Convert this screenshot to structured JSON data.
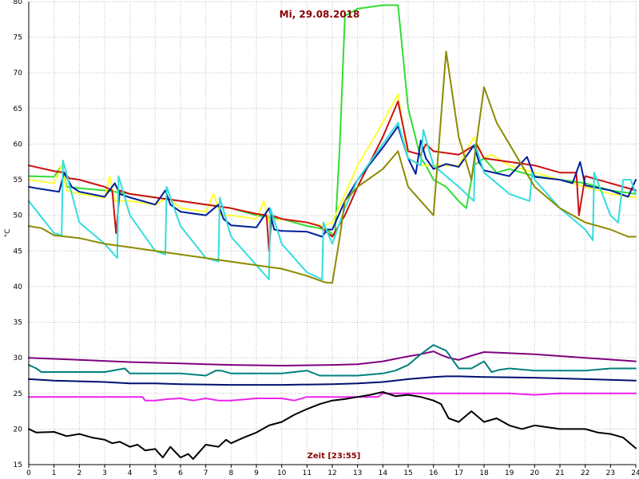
{
  "chart_data": {
    "type": "line",
    "title": "Mi, 29.08.2018",
    "xlabel": "Zeit [23:55]",
    "ylabel": "°C",
    "xlim": [
      0,
      24
    ],
    "ylim": [
      15,
      80
    ],
    "x_ticks": [
      "0",
      "1",
      "2",
      "3",
      "4",
      "5",
      "6",
      "7",
      "8",
      "9",
      "10",
      "11",
      "12",
      "13",
      "14",
      "15",
      "16",
      "17",
      "18",
      "19",
      "20",
      "21",
      "22",
      "23",
      "24"
    ],
    "y_ticks": [
      "15",
      "20",
      "25",
      "30",
      "35",
      "40",
      "45",
      "50",
      "55",
      "60",
      "65",
      "70",
      "75",
      "80"
    ],
    "grid": true,
    "legend": "none",
    "series": [
      {
        "color": "#33dd33",
        "x": [
          0,
          1,
          1.3,
          1.5,
          2,
          3,
          4,
          5,
          6,
          7,
          8,
          9,
          10,
          11,
          11.8,
          12.1,
          12.3,
          12.5,
          13,
          14,
          14.6,
          15,
          15.5,
          15.7,
          16,
          16.5,
          17,
          17.3,
          17.6,
          18,
          18.5,
          19,
          19.5,
          20,
          21,
          22,
          23,
          24
        ],
        "y": [
          55.5,
          55.4,
          57,
          54,
          53.8,
          53.5,
          53,
          52.5,
          52,
          51.5,
          51,
          50,
          49.5,
          48.5,
          48,
          47,
          60,
          78,
          79,
          79.5,
          79.5,
          65,
          58,
          57,
          55,
          54,
          52,
          51,
          57,
          58,
          56,
          56.5,
          56,
          55.5,
          55,
          54.5,
          53.5,
          53
        ]
      },
      {
        "color": "#ffff33",
        "x": [
          0,
          1,
          1.3,
          1.5,
          2,
          3,
          3.2,
          3.4,
          4,
          5,
          5.5,
          6,
          7,
          7.3,
          7.6,
          8,
          9,
          9.3,
          9.5,
          10,
          11,
          11.6,
          12,
          12.5,
          13,
          14,
          14.6,
          15,
          15.5,
          16,
          17,
          17.6,
          18,
          18.3,
          19,
          20,
          21,
          22,
          23,
          24
        ],
        "y": [
          55,
          54.5,
          57,
          53.5,
          53,
          52.5,
          55.5,
          52,
          52,
          51.5,
          52.5,
          51,
          50.5,
          53,
          50,
          50,
          49.5,
          52,
          49,
          49.5,
          49,
          48.5,
          49,
          53,
          57,
          63,
          67,
          58,
          57,
          57,
          57,
          61,
          58,
          58.5,
          57,
          56,
          55,
          54,
          53,
          52.5
        ]
      },
      {
        "color": "#cc1111",
        "x": [
          0,
          1,
          1.4,
          1.6,
          2,
          3,
          3.3,
          3.45,
          3.6,
          4,
          5,
          6,
          7,
          8,
          9,
          9.4,
          9.5,
          9.6,
          10,
          11,
          11.5,
          12,
          12.5,
          13,
          14,
          14.6,
          15,
          15.5,
          15.7,
          16,
          17,
          17.7,
          18,
          19,
          20,
          21,
          21.65,
          21.75,
          22,
          23,
          24
        ],
        "y": [
          57,
          56.2,
          56,
          55.2,
          55,
          54,
          53.5,
          47.5,
          53.5,
          53,
          52.5,
          52,
          51.5,
          51,
          50.2,
          50,
          45,
          50,
          49.5,
          49,
          48.5,
          47,
          50,
          54,
          61,
          66,
          59,
          58.5,
          60,
          59,
          58.5,
          60,
          58,
          57.5,
          57,
          56,
          56,
          50,
          55.5,
          54.5,
          53.5
        ]
      },
      {
        "color": "#001f9c",
        "x": [
          0,
          0.3,
          1.2,
          1.4,
          1.7,
          2,
          3,
          3.4,
          3.6,
          4,
          5,
          5.4,
          5.6,
          6,
          7,
          7.5,
          7.7,
          8,
          9,
          9.5,
          9.7,
          10,
          11,
          11.6,
          11.8,
          12,
          12.5,
          13,
          14,
          14.6,
          15,
          15.3,
          15.5,
          15.7,
          16,
          16.5,
          17,
          17.6,
          17.8,
          18,
          19,
          19.7,
          20,
          21,
          21.5,
          21.8,
          22,
          23,
          23.7,
          24
        ],
        "y": [
          54,
          53.8,
          53.3,
          56,
          54,
          53.3,
          52.6,
          54.5,
          53,
          52.5,
          51.5,
          53.5,
          51.5,
          50.5,
          50,
          51.5,
          49.5,
          48.6,
          48.3,
          51,
          48,
          47.8,
          47.7,
          47,
          48,
          48,
          52,
          55,
          59.5,
          62.5,
          58,
          55.8,
          60.5,
          58,
          56.5,
          57.2,
          56.8,
          59.8,
          57.5,
          56.3,
          55.5,
          58.2,
          55.4,
          55,
          54.5,
          57.5,
          54.2,
          53.5,
          52.6,
          55
        ]
      },
      {
        "color": "#33dddd",
        "x": [
          0,
          1,
          1.3,
          1.35,
          2,
          3,
          3.5,
          3.55,
          4,
          5,
          5.4,
          5.45,
          6,
          7,
          7.5,
          7.55,
          8,
          9,
          9.5,
          9.55,
          10,
          11,
          11.6,
          11.65,
          12,
          12.5,
          13,
          14,
          14.6,
          15,
          15.5,
          15.6,
          16,
          17,
          17.6,
          17.65,
          18,
          19,
          19.8,
          19.9,
          20,
          21,
          22,
          22.3,
          22.35,
          23,
          23.3,
          23.5,
          23.8,
          24
        ],
        "y": [
          52,
          47.5,
          47.2,
          57.7,
          49,
          46,
          44,
          55.5,
          50,
          45,
          44.5,
          54,
          48.5,
          44,
          43.5,
          52.5,
          47,
          43,
          41,
          51,
          46,
          42,
          41,
          49,
          46,
          51,
          55,
          60,
          63,
          58,
          57,
          62,
          57,
          54,
          52,
          60,
          56,
          53,
          52,
          56,
          55,
          51,
          48,
          46.5,
          56,
          50,
          49,
          55,
          55,
          53
        ]
      },
      {
        "color": "#8b8b00",
        "x": [
          0,
          0.5,
          1,
          2,
          3,
          4,
          5,
          6,
          7,
          8,
          9,
          10,
          11,
          11.7,
          12,
          12.3,
          12.5,
          13,
          14,
          14.6,
          15,
          15.5,
          16,
          16.5,
          17,
          17.5,
          18,
          18.5,
          19,
          19.5,
          20,
          21,
          22,
          23,
          23.7,
          24
        ],
        "y": [
          48.5,
          48.2,
          47.2,
          46.8,
          46,
          45.5,
          45,
          44.5,
          44,
          43.5,
          43,
          42.5,
          41.5,
          40.6,
          40.5,
          47,
          52,
          54,
          56.5,
          59,
          54,
          52,
          50,
          73,
          61,
          55,
          68,
          63,
          60,
          57,
          54,
          51,
          49,
          48,
          47,
          47
        ]
      },
      {
        "color": "#800080",
        "x": [
          0,
          2,
          4,
          6,
          8,
          10,
          12,
          13,
          14,
          15,
          15.5,
          16,
          16.3,
          16.6,
          17,
          17.5,
          18,
          20,
          22,
          24
        ],
        "y": [
          30,
          29.7,
          29.4,
          29.2,
          29,
          28.9,
          29,
          29.1,
          29.5,
          30.2,
          30.5,
          30.9,
          30.4,
          30,
          29.7,
          30.3,
          30.8,
          30.5,
          30,
          29.5
        ]
      },
      {
        "color": "#008080",
        "x": [
          0,
          0.3,
          0.5,
          2,
          3,
          3.8,
          4,
          5,
          6,
          7,
          7.4,
          7.6,
          8,
          9,
          10,
          11,
          11.5,
          12,
          13,
          14,
          14.5,
          15,
          15.5,
          16,
          16.5,
          17,
          17.5,
          18,
          18.3,
          18.6,
          19,
          20,
          21,
          22,
          23,
          24
        ],
        "y": [
          29,
          28.5,
          28,
          28,
          28,
          28.5,
          27.8,
          27.8,
          27.8,
          27.5,
          28.2,
          28.2,
          27.8,
          27.8,
          27.8,
          28.2,
          27.5,
          27.5,
          27.5,
          27.8,
          28.2,
          29,
          30.5,
          31.8,
          31,
          28.5,
          28.5,
          29.5,
          28,
          28.3,
          28.5,
          28.2,
          28.2,
          28.2,
          28.5,
          28.5
        ]
      },
      {
        "color": "#001070",
        "x": [
          0,
          1,
          2,
          3,
          4,
          5,
          6,
          8,
          10,
          12,
          13,
          14,
          15,
          16,
          16.5,
          17,
          18,
          20,
          22,
          24
        ],
        "y": [
          27,
          26.8,
          26.7,
          26.6,
          26.4,
          26.4,
          26.3,
          26.2,
          26.2,
          26.3,
          26.4,
          26.6,
          27,
          27.3,
          27.4,
          27.4,
          27.3,
          27.2,
          27,
          26.8
        ]
      },
      {
        "color": "#ee22ee",
        "x": [
          0,
          4.5,
          4.6,
          5,
          5.5,
          6,
          6.5,
          7,
          7.5,
          8,
          9,
          10,
          10.5,
          11,
          12,
          13,
          13.8,
          14,
          15,
          16,
          17,
          18,
          19,
          20,
          21,
          22,
          23,
          24
        ],
        "y": [
          24.5,
          24.5,
          24,
          24,
          24.2,
          24.3,
          24,
          24.3,
          24,
          24,
          24.3,
          24.3,
          24,
          24.5,
          24.5,
          24.5,
          24.5,
          25,
          25,
          25,
          25,
          25,
          25,
          24.8,
          25,
          25,
          25,
          25
        ]
      },
      {
        "color": "#000000",
        "x": [
          0,
          0.3,
          1,
          1.5,
          2,
          2.5,
          3,
          3.3,
          3.6,
          4,
          4.3,
          4.6,
          5,
          5.3,
          5.6,
          6,
          6.3,
          6.5,
          6.8,
          7,
          7.5,
          7.8,
          8,
          8.5,
          9,
          9.5,
          10,
          10.5,
          11,
          11.5,
          12,
          12.5,
          13,
          13.5,
          14,
          14.5,
          15,
          15.5,
          16,
          16.3,
          16.6,
          17,
          17.5,
          18,
          18.5,
          19,
          19.5,
          20,
          21,
          22,
          22.5,
          23,
          23.5,
          24
        ],
        "y": [
          20,
          19.5,
          19.6,
          19,
          19.3,
          18.8,
          18.5,
          18,
          18.2,
          17.5,
          17.8,
          17,
          17.2,
          16,
          17.5,
          16,
          16.5,
          15.8,
          17,
          17.8,
          17.5,
          18.5,
          18,
          18.8,
          19.5,
          20.5,
          21,
          22,
          22.8,
          23.5,
          24,
          24.2,
          24.5,
          24.8,
          25.2,
          24.6,
          24.8,
          24.5,
          24,
          23.5,
          21.5,
          21,
          22.5,
          21,
          21.5,
          20.5,
          20,
          20.5,
          20,
          20,
          19.5,
          19.3,
          18.8,
          17.3
        ]
      }
    ]
  }
}
